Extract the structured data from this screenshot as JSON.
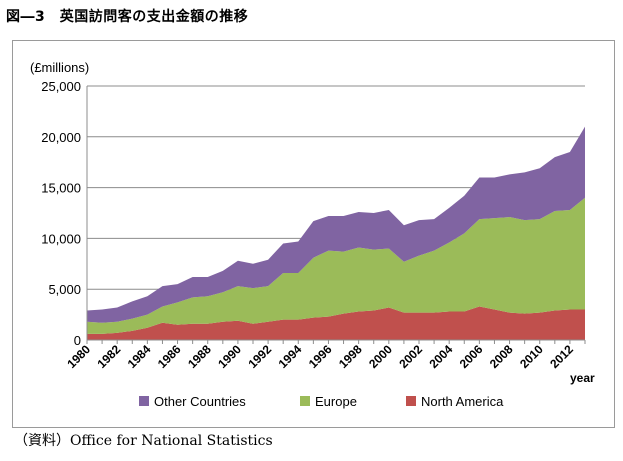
{
  "figure": {
    "title": "図―3　英国訪問客の支出金額の推移",
    "source": "（資料）Office for National Statistics"
  },
  "chart_data": {
    "type": "area",
    "stacked": true,
    "ylabel": "(£millions)",
    "xlabel": "year",
    "ylim": [
      0,
      25000
    ],
    "yticks": [
      0,
      5000,
      10000,
      15000,
      20000,
      25000
    ],
    "ytick_labels": [
      "0",
      "5,000",
      "10,000",
      "15,000",
      "20,000",
      "25,000"
    ],
    "xticks": [
      "1980",
      "1982",
      "1984",
      "1986",
      "1988",
      "1990",
      "1992",
      "1994",
      "1996",
      "1998",
      "2000",
      "2002",
      "2004",
      "2006",
      "2008",
      "2010",
      "2012"
    ],
    "grid": "horizontal",
    "legend_position": "bottom",
    "x": [
      1980,
      1981,
      1982,
      1983,
      1984,
      1985,
      1986,
      1987,
      1988,
      1989,
      1990,
      1991,
      1992,
      1993,
      1994,
      1995,
      1996,
      1997,
      1998,
      1999,
      2000,
      2001,
      2002,
      2003,
      2004,
      2005,
      2006,
      2007,
      2008,
      2009,
      2010,
      2011,
      2012,
      2013
    ],
    "series": [
      {
        "name": "North America",
        "color": "#c0504d",
        "values": [
          600,
          600,
          700,
          900,
          1200,
          1700,
          1500,
          1600,
          1600,
          1800,
          1900,
          1600,
          1800,
          2000,
          2000,
          2200,
          2300,
          2600,
          2800,
          2900,
          3200,
          2700,
          2700,
          2700,
          2800,
          2800,
          3300,
          3000,
          2700,
          2600,
          2700,
          2900,
          3000,
          3000
        ]
      },
      {
        "name": "Europe",
        "color": "#9bbb59",
        "values": [
          1200,
          1100,
          1100,
          1200,
          1300,
          1600,
          2200,
          2600,
          2700,
          2900,
          3400,
          3500,
          3500,
          4600,
          4600,
          5900,
          6500,
          6100,
          6300,
          6000,
          5800,
          5000,
          5600,
          6100,
          6800,
          7700,
          8600,
          9000,
          9400,
          9200,
          9200,
          9800,
          9800,
          11000
        ]
      },
      {
        "name": "Other Countries",
        "color": "#8064a2",
        "values": [
          1100,
          1300,
          1400,
          1700,
          1800,
          2000,
          1800,
          2000,
          1900,
          2100,
          2500,
          2400,
          2600,
          2900,
          3100,
          3600,
          3400,
          3500,
          3500,
          3600,
          3800,
          3600,
          3500,
          3100,
          3400,
          3700,
          4100,
          4000,
          4200,
          4700,
          5000,
          5300,
          5700,
          7000
        ]
      }
    ]
  }
}
